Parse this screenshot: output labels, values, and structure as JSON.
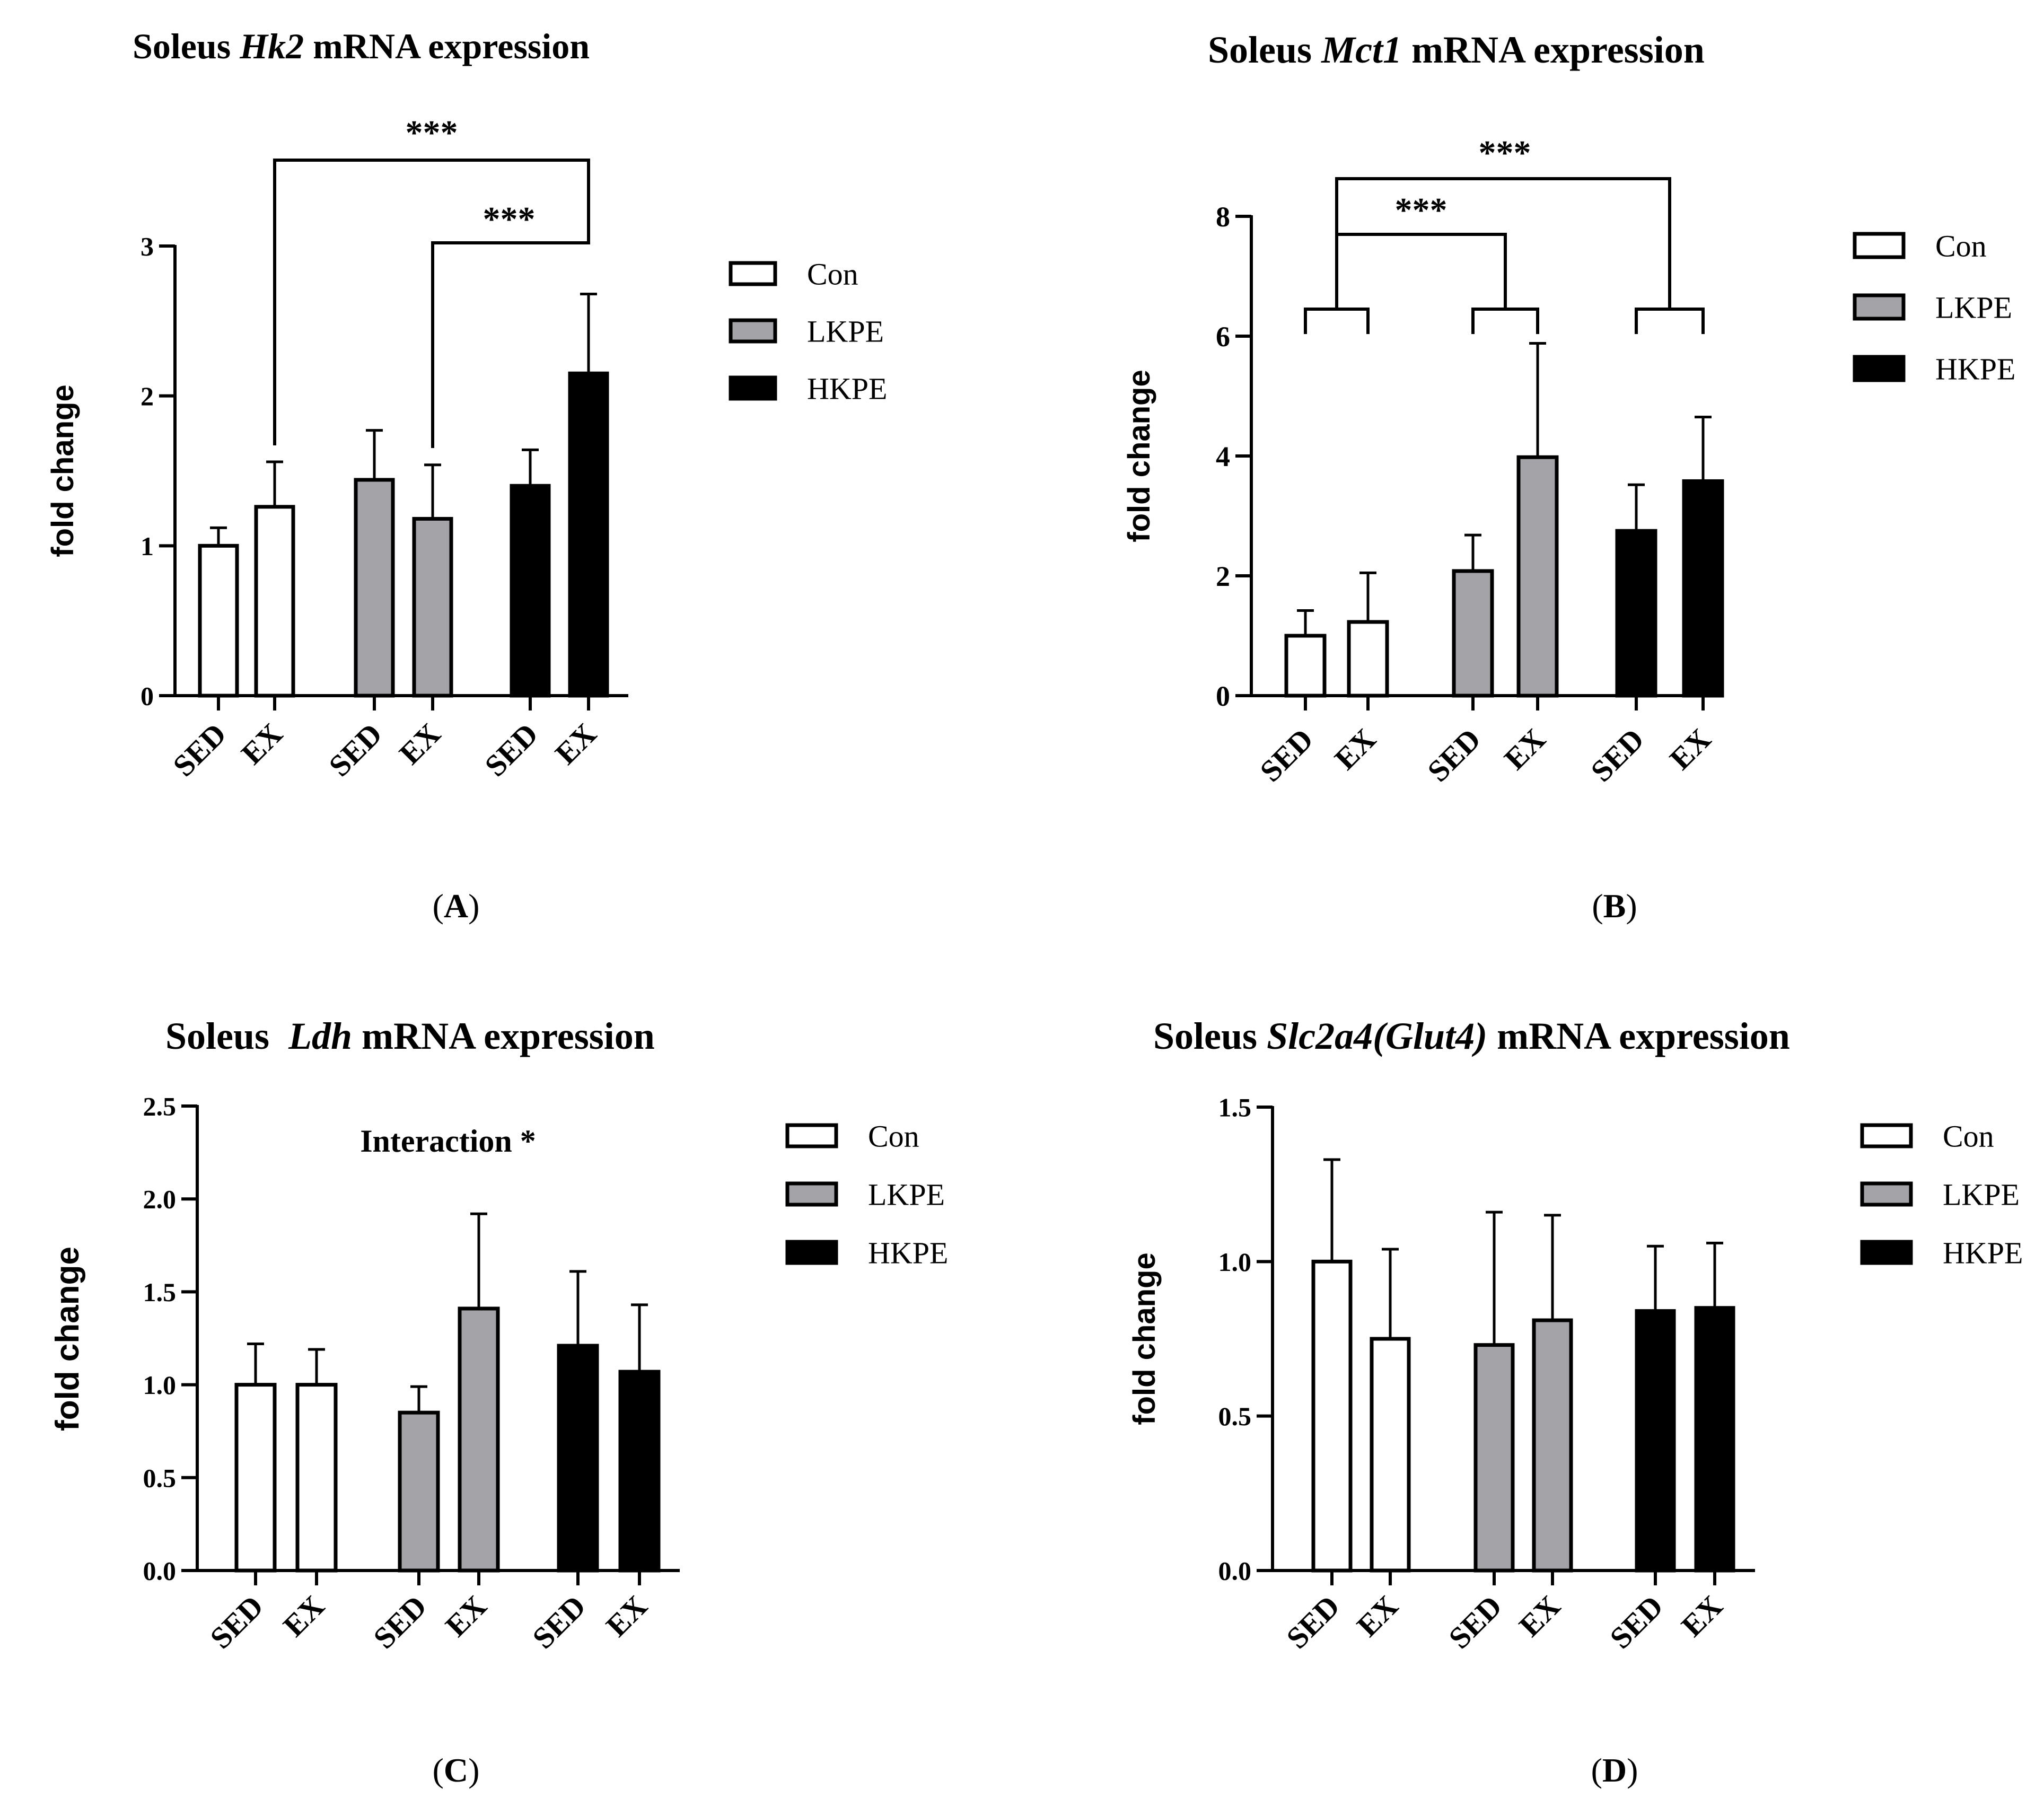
{
  "figure": {
    "panel_labels": [
      "A",
      "B",
      "C",
      "D"
    ],
    "fill_colors": {
      "Con": "#ffffff",
      "LKPE": "#a4a4a8",
      "HKPE": "#000000"
    },
    "axis_color": "#000000"
  },
  "chart_data": [
    {
      "type": "bar",
      "panel": "A",
      "title": {
        "prefix": "Soleus ",
        "gene": "Hk2",
        "suffix": " mRNA expression"
      },
      "ylabel": "fold change",
      "xlabel": "",
      "ylim": [
        0,
        3
      ],
      "yticks": [
        0,
        1,
        2,
        3
      ],
      "ytick_labels": [
        "0",
        "1",
        "2",
        "3"
      ],
      "categories": [
        "SED",
        "EX",
        "SED",
        "EX",
        "SED",
        "EX"
      ],
      "groups": [
        "Con",
        "Con",
        "LKPE",
        "LKPE",
        "HKPE",
        "HKPE"
      ],
      "values": [
        1.0,
        1.26,
        1.44,
        1.18,
        1.4,
        2.15
      ],
      "errors": [
        0.12,
        0.3,
        0.33,
        0.36,
        0.24,
        0.53
      ],
      "legend": [
        "Con",
        "LKPE",
        "HKPE"
      ],
      "legend_position": "right",
      "annotations": [
        {
          "text": "***",
          "from": 1,
          "to": 5
        },
        {
          "text": "***",
          "from": 3,
          "to": 5
        }
      ]
    },
    {
      "type": "bar",
      "panel": "B",
      "title": {
        "prefix": "Soleus ",
        "gene": "Mct1",
        "suffix": " mRNA expression"
      },
      "ylabel": "fold change",
      "xlabel": "",
      "ylim": [
        0,
        8
      ],
      "yticks": [
        0,
        2,
        4,
        6,
        8
      ],
      "ytick_labels": [
        "0",
        "2",
        "4",
        "6",
        "8"
      ],
      "categories": [
        "SED",
        "EX",
        "SED",
        "EX",
        "SED",
        "EX"
      ],
      "groups": [
        "Con",
        "Con",
        "LKPE",
        "LKPE",
        "HKPE",
        "HKPE"
      ],
      "values": [
        1.0,
        1.23,
        2.08,
        3.98,
        2.75,
        3.58
      ],
      "errors": [
        0.42,
        0.82,
        0.6,
        1.9,
        0.77,
        1.07
      ],
      "legend": [
        "Con",
        "LKPE",
        "HKPE"
      ],
      "legend_position": "right",
      "annotations": [
        {
          "text": "***",
          "groups": [
            "Con",
            "LKPE"
          ]
        },
        {
          "text": "***",
          "groups": [
            "Con",
            "HKPE"
          ]
        }
      ]
    },
    {
      "type": "bar",
      "panel": "C",
      "title": {
        "prefix": "Soleus  ",
        "gene": "Ldh",
        "suffix": " mRNA expression"
      },
      "ylabel": "fold change",
      "xlabel": "",
      "ylim": [
        0,
        2.5
      ],
      "yticks": [
        0,
        0.5,
        1.0,
        1.5,
        2.0,
        2.5
      ],
      "ytick_labels": [
        "0.0",
        "0.5",
        "1.0",
        "1.5",
        "2.0",
        "2.5"
      ],
      "categories": [
        "SED",
        "EX",
        "SED",
        "EX",
        "SED",
        "EX"
      ],
      "groups": [
        "Con",
        "Con",
        "LKPE",
        "LKPE",
        "HKPE",
        "HKPE"
      ],
      "values": [
        1.0,
        1.0,
        0.85,
        1.41,
        1.21,
        1.07
      ],
      "errors": [
        0.22,
        0.19,
        0.14,
        0.51,
        0.4,
        0.36
      ],
      "legend": [
        "Con",
        "LKPE",
        "HKPE"
      ],
      "legend_position": "right",
      "note": "Interaction *"
    },
    {
      "type": "bar",
      "panel": "D",
      "title": {
        "prefix": "Soleus ",
        "gene": "Slc2a4(Glut4)",
        "suffix": " mRNA expression"
      },
      "ylabel": "fold change",
      "xlabel": "",
      "ylim": [
        0,
        1.5
      ],
      "yticks": [
        0,
        0.5,
        1.0,
        1.5
      ],
      "ytick_labels": [
        "0.0",
        "0.5",
        "1.0",
        "1.5"
      ],
      "categories": [
        "SED",
        "EX",
        "SED",
        "EX",
        "SED",
        "EX"
      ],
      "groups": [
        "Con",
        "Con",
        "LKPE",
        "LKPE",
        "HKPE",
        "HKPE"
      ],
      "values": [
        1.0,
        0.75,
        0.73,
        0.81,
        0.84,
        0.85
      ],
      "errors": [
        0.33,
        0.29,
        0.43,
        0.34,
        0.21,
        0.21
      ],
      "legend": [
        "Con",
        "LKPE",
        "HKPE"
      ],
      "legend_position": "right"
    }
  ]
}
